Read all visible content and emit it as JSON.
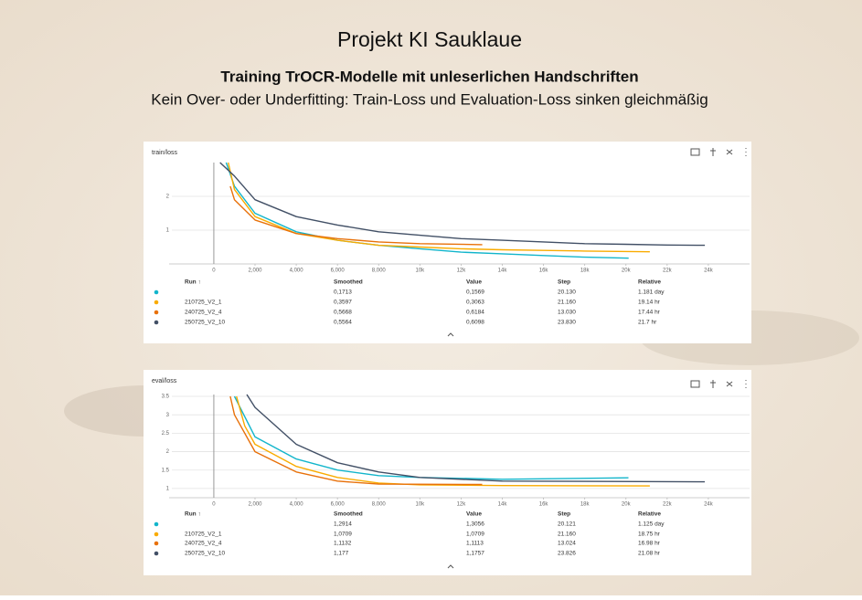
{
  "slide": {
    "title": "Projekt KI Sauklaue",
    "subtitle": "Training TrOCR-Modelle mit unleserlichen Handschriften",
    "caption": "Kein Over- oder Underfitting: Train-Loss und Evaluation-Loss sinken gleichmäßig"
  },
  "chart_data": [
    {
      "type": "line",
      "title": "train/loss",
      "xlim": [
        -2170,
        26000
      ],
      "ylim": [
        0,
        3
      ],
      "xticks": [
        0,
        {
          "value": 2000,
          "label": "2,000"
        },
        {
          "value": 4000,
          "label": "4,000"
        },
        {
          "value": 6000,
          "label": "6,000"
        },
        {
          "value": 8000,
          "label": "8,000"
        },
        {
          "value": 10000,
          "label": "10k"
        },
        {
          "value": 12000,
          "label": "12k"
        },
        {
          "value": 14000,
          "label": "14k"
        },
        {
          "value": 16000,
          "label": "16k"
        },
        {
          "value": 18000,
          "label": "18k"
        },
        {
          "value": 20000,
          "label": "20k"
        },
        {
          "value": 22000,
          "label": "22k"
        },
        {
          "value": 24000,
          "label": "24k"
        }
      ],
      "yticks": [
        1,
        2
      ],
      "grid": true,
      "series": [
        {
          "name": null,
          "color": "#12b5cb",
          "x": [
            600,
            1000,
            2000,
            4000,
            6000,
            8000,
            10000,
            12000,
            14000,
            16000,
            18000,
            20130
          ],
          "values": [
            3,
            2.3,
            1.5,
            0.95,
            0.7,
            0.55,
            0.45,
            0.35,
            0.3,
            0.25,
            0.2,
            0.17
          ]
        },
        {
          "name": "210725_V2_1",
          "color": "#f9ab00",
          "x": [
            700,
            1000,
            2000,
            4000,
            6000,
            8000,
            10000,
            12000,
            14000,
            16000,
            18000,
            21160
          ],
          "values": [
            3,
            2.2,
            1.4,
            0.9,
            0.7,
            0.55,
            0.5,
            0.45,
            0.42,
            0.4,
            0.38,
            0.36
          ]
        },
        {
          "name": "240725_V2_4",
          "color": "#e8710a",
          "x": [
            800,
            1000,
            2000,
            4000,
            6000,
            8000,
            10000,
            13030
          ],
          "values": [
            2.3,
            1.9,
            1.3,
            0.9,
            0.75,
            0.65,
            0.6,
            0.57
          ]
        },
        {
          "name": "250725_V2_10",
          "color": "#425066",
          "x": [
            300,
            1000,
            2000,
            4000,
            6000,
            8000,
            10000,
            12000,
            14000,
            16000,
            18000,
            20000,
            22000,
            23830
          ],
          "values": [
            3,
            2.6,
            1.9,
            1.4,
            1.15,
            0.95,
            0.85,
            0.75,
            0.7,
            0.65,
            0.6,
            0.58,
            0.56,
            0.55
          ]
        }
      ],
      "table": {
        "columns": [
          "Run ↑",
          "Smoothed",
          "Value",
          "Step",
          "Relative"
        ],
        "rows": [
          [
            "0,1713",
            "0,1569",
            "20.130",
            "1.181 day"
          ],
          [
            "0,3597",
            "0,3063",
            "21.160",
            "19.14 hr"
          ],
          [
            "0,5668",
            "0,6184",
            "13.030",
            "17.44 hr"
          ],
          [
            "0,5564",
            "0,6098",
            "23.830",
            "21.7 hr"
          ]
        ]
      }
    },
    {
      "type": "line",
      "title": "eval/loss",
      "xlim": [
        -2170,
        26000
      ],
      "ylim": [
        0.75,
        3.55
      ],
      "xticks": [
        0,
        {
          "value": 2000,
          "label": "2,000"
        },
        {
          "value": 4000,
          "label": "4,000"
        },
        {
          "value": 6000,
          "label": "6,000"
        },
        {
          "value": 8000,
          "label": "8,000"
        },
        {
          "value": 10000,
          "label": "10k"
        },
        {
          "value": 12000,
          "label": "12k"
        },
        {
          "value": 14000,
          "label": "14k"
        },
        {
          "value": 16000,
          "label": "16k"
        },
        {
          "value": 18000,
          "label": "18k"
        },
        {
          "value": 20000,
          "label": "20k"
        },
        {
          "value": 22000,
          "label": "22k"
        },
        {
          "value": 24000,
          "label": "24k"
        }
      ],
      "yticks": [
        1,
        1.5,
        2,
        2.5,
        3,
        3.5
      ],
      "grid": true,
      "series": [
        {
          "name": null,
          "color": "#12b5cb",
          "x": [
            1000,
            2000,
            4000,
            6000,
            8000,
            10000,
            14000,
            20121
          ],
          "values": [
            3.5,
            2.4,
            1.8,
            1.5,
            1.35,
            1.3,
            1.25,
            1.29
          ]
        },
        {
          "name": "210725_V2_1",
          "color": "#f9ab00",
          "x": [
            1100,
            1500,
            2000,
            4000,
            6000,
            8000,
            10000,
            14000,
            21160
          ],
          "values": [
            3.5,
            2.7,
            2.2,
            1.6,
            1.3,
            1.15,
            1.1,
            1.08,
            1.07
          ]
        },
        {
          "name": "240725_V2_4",
          "color": "#e8710a",
          "x": [
            800,
            1000,
            2000,
            4000,
            6000,
            8000,
            13024
          ],
          "values": [
            3.5,
            3,
            2,
            1.45,
            1.2,
            1.12,
            1.11
          ]
        },
        {
          "name": "250725_V2_10",
          "color": "#425066",
          "x": [
            1600,
            2000,
            4000,
            6000,
            8000,
            10000,
            14000,
            23826
          ],
          "values": [
            3.55,
            3.2,
            2.2,
            1.7,
            1.45,
            1.3,
            1.2,
            1.18
          ]
        }
      ],
      "table": {
        "columns": [
          "Run ↑",
          "Smoothed",
          "Value",
          "Step",
          "Relative"
        ],
        "rows": [
          [
            "1,2914",
            "1,3056",
            "20.121",
            "1.125 day"
          ],
          [
            "1,0709",
            "1,0709",
            "21.160",
            "18.75 hr"
          ],
          [
            "1,1132",
            "1,1113",
            "13.024",
            "16.98 hr"
          ],
          [
            "1,177",
            "1,1757",
            "23.826",
            "21.08 hr"
          ]
        ]
      }
    }
  ]
}
